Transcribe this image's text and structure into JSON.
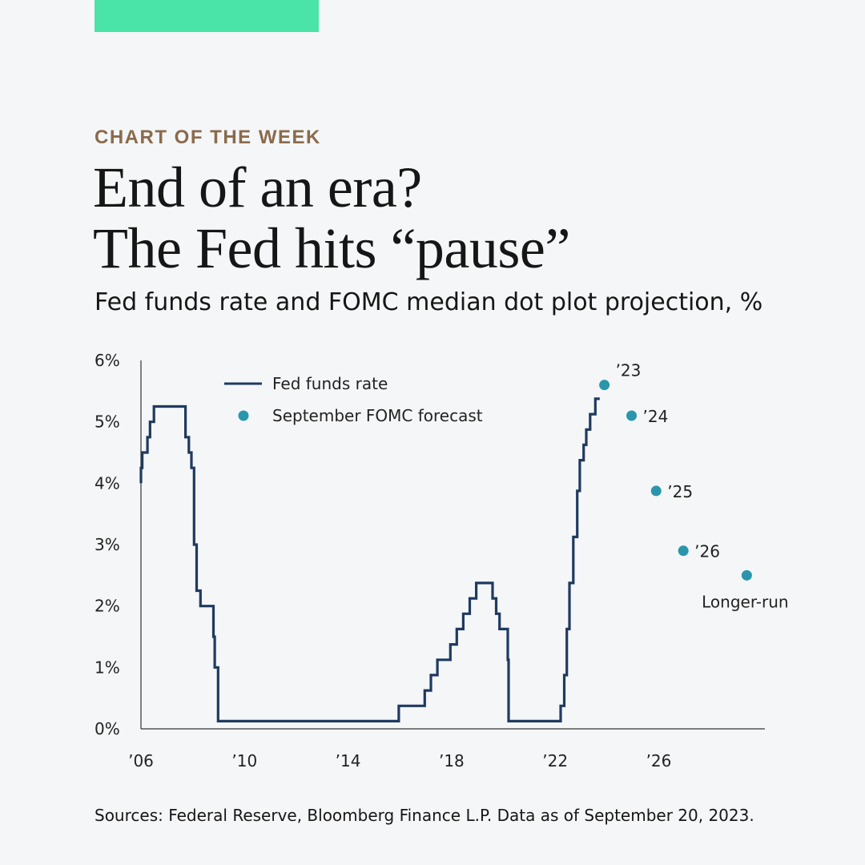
{
  "colors": {
    "accent": "#4ae3a8",
    "kicker": "#8b6a4a",
    "line": "#1f3a5f",
    "dot": "#2a96ab",
    "axis": "#333333"
  },
  "header": {
    "kicker": "CHART OF THE WEEK",
    "title_line1": "End of an era?",
    "title_line2": "The Fed hits “pause”",
    "subtitle": "Fed funds rate and FOMC median dot plot projection, %"
  },
  "footer": {
    "source": "Sources: Federal Reserve, Bloomberg Finance L.P. Data as of September 20, 2023."
  },
  "chart_data": {
    "type": "line",
    "title": "Fed funds rate and FOMC median dot plot projection, %",
    "xlim": [
      2006,
      2030.1
    ],
    "ylim": [
      0,
      6
    ],
    "grid": false,
    "legend_position": "top-left",
    "x_ticks": [
      {
        "value": 2006,
        "label": "’06"
      },
      {
        "value": 2010,
        "label": "’10"
      },
      {
        "value": 2014,
        "label": "’14"
      },
      {
        "value": 2018,
        "label": "’18"
      },
      {
        "value": 2022,
        "label": "’22"
      },
      {
        "value": 2026,
        "label": "’26"
      }
    ],
    "y_ticks": [
      {
        "value": 0,
        "label": "0%"
      },
      {
        "value": 1,
        "label": "1%"
      },
      {
        "value": 2,
        "label": "2%"
      },
      {
        "value": 3,
        "label": "3%"
      },
      {
        "value": 4,
        "label": "4%"
      },
      {
        "value": 5,
        "label": "5%"
      },
      {
        "value": 6,
        "label": "6%"
      }
    ],
    "series": [
      {
        "name": "Fed funds rate",
        "style": "step",
        "points": [
          [
            2006.0,
            4.0
          ],
          [
            2006.0,
            4.25
          ],
          [
            2006.05,
            4.5
          ],
          [
            2006.25,
            4.75
          ],
          [
            2006.35,
            5.0
          ],
          [
            2006.5,
            5.25
          ],
          [
            2007.7,
            5.25
          ],
          [
            2007.72,
            4.75
          ],
          [
            2007.85,
            4.5
          ],
          [
            2007.95,
            4.25
          ],
          [
            2008.05,
            3.0
          ],
          [
            2008.15,
            2.25
          ],
          [
            2008.3,
            2.0
          ],
          [
            2008.8,
            1.5
          ],
          [
            2008.85,
            1.0
          ],
          [
            2008.98,
            0.125
          ],
          [
            2015.95,
            0.125
          ],
          [
            2015.96,
            0.375
          ],
          [
            2016.95,
            0.375
          ],
          [
            2016.96,
            0.625
          ],
          [
            2017.2,
            0.875
          ],
          [
            2017.45,
            1.125
          ],
          [
            2017.95,
            1.375
          ],
          [
            2018.2,
            1.625
          ],
          [
            2018.45,
            1.875
          ],
          [
            2018.7,
            2.125
          ],
          [
            2018.95,
            2.375
          ],
          [
            2019.55,
            2.375
          ],
          [
            2019.58,
            2.125
          ],
          [
            2019.72,
            1.875
          ],
          [
            2019.85,
            1.625
          ],
          [
            2020.17,
            1.125
          ],
          [
            2020.2,
            0.125
          ],
          [
            2022.2,
            0.125
          ],
          [
            2022.21,
            0.375
          ],
          [
            2022.35,
            0.875
          ],
          [
            2022.45,
            1.625
          ],
          [
            2022.55,
            2.375
          ],
          [
            2022.7,
            3.125
          ],
          [
            2022.85,
            3.875
          ],
          [
            2022.95,
            4.375
          ],
          [
            2023.1,
            4.625
          ],
          [
            2023.2,
            4.875
          ],
          [
            2023.35,
            5.125
          ],
          [
            2023.55,
            5.375
          ],
          [
            2023.72,
            5.375
          ]
        ]
      },
      {
        "name": "September FOMC forecast",
        "style": "dots",
        "points": [
          {
            "x": 2023.9,
            "y": 5.6,
            "label": "’23"
          },
          {
            "x": 2024.95,
            "y": 5.1,
            "label": "’24"
          },
          {
            "x": 2025.9,
            "y": 3.875,
            "label": "’25"
          },
          {
            "x": 2026.95,
            "y": 2.9,
            "label": "’26"
          },
          {
            "x": 2029.4,
            "y": 2.5,
            "label": "Longer-run"
          }
        ]
      }
    ]
  }
}
